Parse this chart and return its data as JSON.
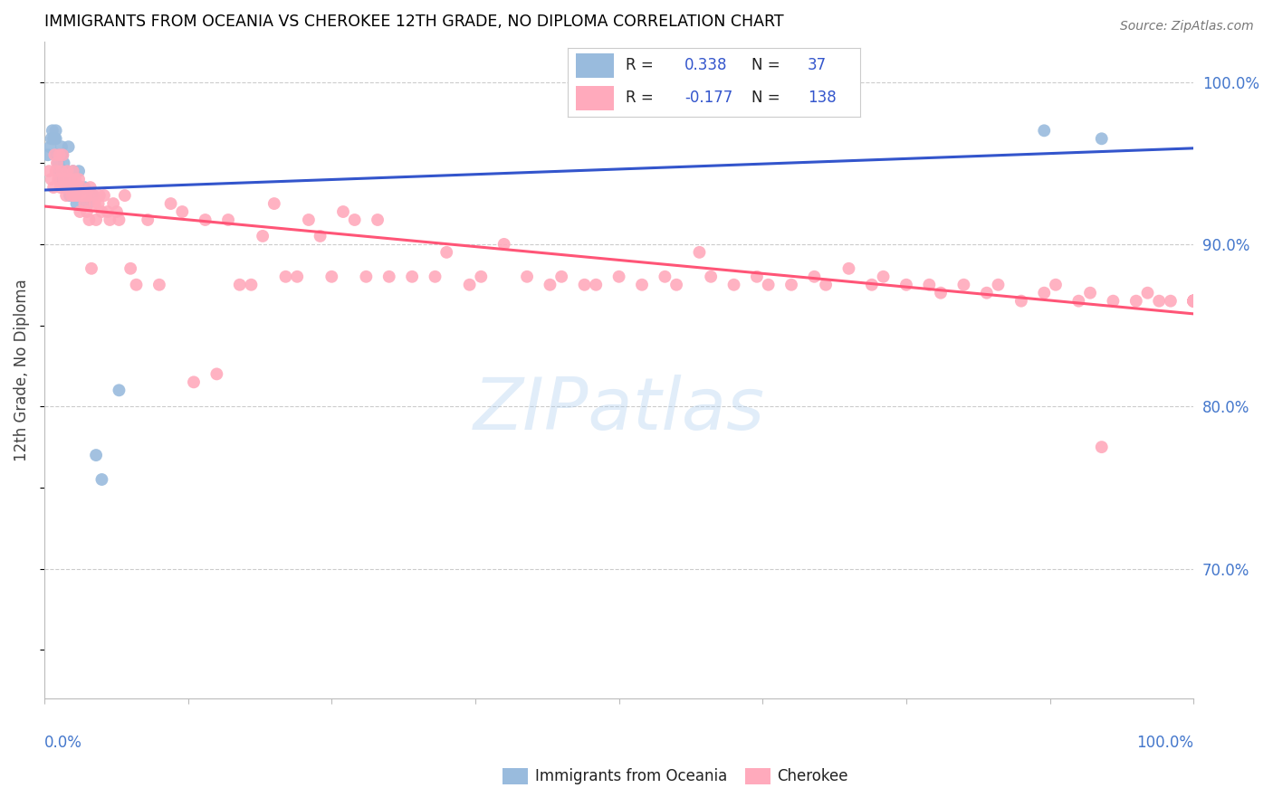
{
  "title": "IMMIGRANTS FROM OCEANIA VS CHEROKEE 12TH GRADE, NO DIPLOMA CORRELATION CHART",
  "source": "Source: ZipAtlas.com",
  "ylabel": "12th Grade, No Diploma",
  "watermark": "ZIPatlas",
  "color_blue": "#99BBDD",
  "color_pink": "#FFAABC",
  "color_blue_line": "#3355CC",
  "color_pink_line": "#FF5577",
  "color_axis_label": "#4477CC",
  "xlim": [
    0.0,
    1.0
  ],
  "ylim": [
    0.62,
    1.025
  ],
  "blue_x": [
    0.003,
    0.005,
    0.006,
    0.007,
    0.008,
    0.009,
    0.01,
    0.01,
    0.011,
    0.012,
    0.013,
    0.014,
    0.015,
    0.015,
    0.016,
    0.016,
    0.017,
    0.018,
    0.019,
    0.02,
    0.021,
    0.022,
    0.023,
    0.024,
    0.025,
    0.027,
    0.028,
    0.03,
    0.032,
    0.035,
    0.038,
    0.042,
    0.045,
    0.05,
    0.065,
    0.87,
    0.92
  ],
  "blue_y": [
    0.955,
    0.96,
    0.965,
    0.97,
    0.965,
    0.965,
    0.97,
    0.965,
    0.955,
    0.95,
    0.945,
    0.94,
    0.96,
    0.955,
    0.955,
    0.945,
    0.95,
    0.945,
    0.935,
    0.945,
    0.96,
    0.93,
    0.94,
    0.935,
    0.945,
    0.93,
    0.925,
    0.945,
    0.935,
    0.935,
    0.925,
    0.93,
    0.77,
    0.755,
    0.81,
    0.97,
    0.965
  ],
  "pink_x": [
    0.004,
    0.006,
    0.008,
    0.009,
    0.01,
    0.011,
    0.012,
    0.013,
    0.014,
    0.015,
    0.016,
    0.017,
    0.018,
    0.019,
    0.02,
    0.021,
    0.022,
    0.023,
    0.024,
    0.025,
    0.026,
    0.027,
    0.028,
    0.029,
    0.03,
    0.031,
    0.032,
    0.033,
    0.034,
    0.035,
    0.036,
    0.037,
    0.038,
    0.039,
    0.04,
    0.041,
    0.043,
    0.044,
    0.045,
    0.047,
    0.048,
    0.05,
    0.052,
    0.055,
    0.057,
    0.06,
    0.063,
    0.065,
    0.07,
    0.075,
    0.08,
    0.09,
    0.1,
    0.11,
    0.12,
    0.13,
    0.14,
    0.15,
    0.16,
    0.17,
    0.18,
    0.19,
    0.2,
    0.21,
    0.22,
    0.23,
    0.24,
    0.25,
    0.26,
    0.27,
    0.28,
    0.29,
    0.3,
    0.32,
    0.34,
    0.35,
    0.37,
    0.38,
    0.4,
    0.42,
    0.44,
    0.45,
    0.47,
    0.48,
    0.5,
    0.52,
    0.54,
    0.55,
    0.57,
    0.58,
    0.6,
    0.62,
    0.63,
    0.65,
    0.67,
    0.68,
    0.7,
    0.72,
    0.73,
    0.75,
    0.77,
    0.78,
    0.8,
    0.82,
    0.83,
    0.85,
    0.87,
    0.88,
    0.9,
    0.91,
    0.92,
    0.93,
    0.95,
    0.96,
    0.97,
    0.98,
    1.0,
    1.0,
    1.0,
    1.0,
    1.0,
    1.0,
    1.0,
    1.0,
    1.0,
    1.0,
    1.0,
    1.0,
    1.0,
    1.0,
    1.0,
    1.0,
    1.0,
    1.0,
    1.0,
    1.0,
    1.0,
    1.0
  ],
  "pink_y": [
    0.945,
    0.94,
    0.935,
    0.955,
    0.945,
    0.95,
    0.94,
    0.955,
    0.935,
    0.945,
    0.955,
    0.94,
    0.935,
    0.93,
    0.945,
    0.935,
    0.94,
    0.935,
    0.93,
    0.945,
    0.93,
    0.94,
    0.935,
    0.93,
    0.94,
    0.92,
    0.935,
    0.93,
    0.93,
    0.925,
    0.93,
    0.92,
    0.93,
    0.915,
    0.935,
    0.885,
    0.93,
    0.925,
    0.915,
    0.925,
    0.93,
    0.92,
    0.93,
    0.92,
    0.915,
    0.925,
    0.92,
    0.915,
    0.93,
    0.885,
    0.875,
    0.915,
    0.875,
    0.925,
    0.92,
    0.815,
    0.915,
    0.82,
    0.915,
    0.875,
    0.875,
    0.905,
    0.925,
    0.88,
    0.88,
    0.915,
    0.905,
    0.88,
    0.92,
    0.915,
    0.88,
    0.915,
    0.88,
    0.88,
    0.88,
    0.895,
    0.875,
    0.88,
    0.9,
    0.88,
    0.875,
    0.88,
    0.875,
    0.875,
    0.88,
    0.875,
    0.88,
    0.875,
    0.895,
    0.88,
    0.875,
    0.88,
    0.875,
    0.875,
    0.88,
    0.875,
    0.885,
    0.875,
    0.88,
    0.875,
    0.875,
    0.87,
    0.875,
    0.87,
    0.875,
    0.865,
    0.87,
    0.875,
    0.865,
    0.87,
    0.775,
    0.865,
    0.865,
    0.87,
    0.865,
    0.865,
    0.865,
    0.865,
    0.865,
    0.865,
    0.865,
    0.865,
    0.865,
    0.865,
    0.865,
    0.865,
    0.865,
    0.865,
    0.865,
    0.865,
    0.865,
    0.865,
    0.865,
    0.865,
    0.865,
    0.865,
    0.865,
    0.865
  ]
}
